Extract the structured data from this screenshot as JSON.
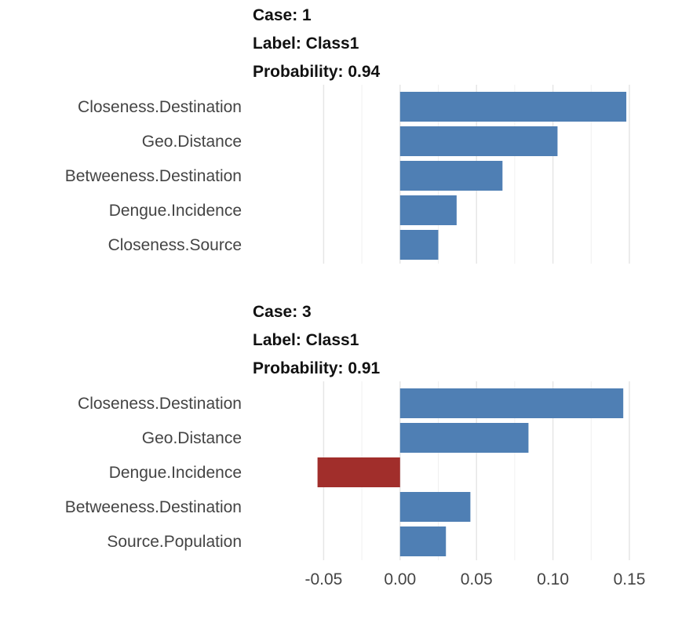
{
  "chart_data": {
    "type": "bar",
    "orientation": "horizontal",
    "xlim": [
      -0.1,
      0.15
    ],
    "x_ticks": [
      "-0.05",
      "0.00",
      "0.05",
      "0.10",
      "0.15"
    ],
    "x_tick_values": [
      -0.05,
      0.0,
      0.05,
      0.1,
      0.15
    ],
    "grid": true,
    "colors": {
      "positive": "#4f7fb4",
      "negative": "#a12e2b"
    },
    "panels": [
      {
        "case_label": "Case: 1",
        "label_text": "Label: Class1",
        "probability_text": "Probability: 0.94",
        "categories": [
          "Closeness.Destination",
          "Geo.Distance",
          "Betweeness.Destination",
          "Dengue.Incidence",
          "Closeness.Source"
        ],
        "values": [
          0.148,
          0.103,
          0.067,
          0.037,
          0.025
        ]
      },
      {
        "case_label": "Case: 3",
        "label_text": "Label: Class1",
        "probability_text": "Probability: 0.91",
        "categories": [
          "Closeness.Destination",
          "Geo.Distance",
          "Dengue.Incidence",
          "Betweeness.Destination",
          "Source.Population"
        ],
        "values": [
          0.146,
          0.084,
          -0.054,
          0.046,
          0.03
        ]
      }
    ]
  }
}
